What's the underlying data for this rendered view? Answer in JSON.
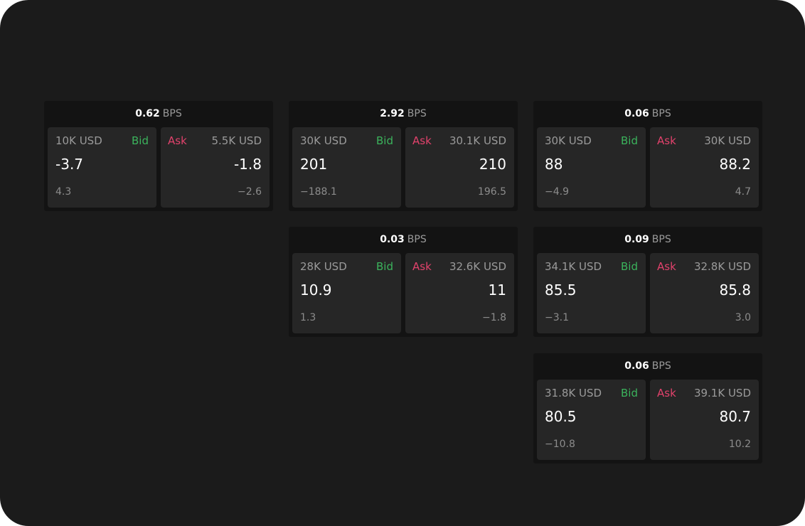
{
  "cards": [
    {
      "spread": "0.62",
      "unit": "BPS",
      "bid": {
        "size": "10K USD",
        "label": "Bid",
        "price": "-3.7",
        "change": "4.3"
      },
      "ask": {
        "size": "5.5K USD",
        "label": "Ask",
        "price": "-1.8",
        "change": "−2.6"
      }
    },
    {
      "spread": "2.92",
      "unit": "BPS",
      "bid": {
        "size": "30K USD",
        "label": "Bid",
        "price": "201",
        "change": "−188.1"
      },
      "ask": {
        "size": "30.1K USD",
        "label": "Ask",
        "price": "210",
        "change": "196.5"
      }
    },
    {
      "spread": "0.06",
      "unit": "BPS",
      "bid": {
        "size": "30K USD",
        "label": "Bid",
        "price": "88",
        "change": "−4.9"
      },
      "ask": {
        "size": "30K USD",
        "label": "Ask",
        "price": "88.2",
        "change": "4.7"
      }
    },
    {
      "spread": "0.03",
      "unit": "BPS",
      "bid": {
        "size": "28K USD",
        "label": "Bid",
        "price": "10.9",
        "change": "1.3"
      },
      "ask": {
        "size": "32.6K USD",
        "label": "Ask",
        "price": "11",
        "change": "−1.8"
      }
    },
    {
      "spread": "0.09",
      "unit": "BPS",
      "bid": {
        "size": "34.1K USD",
        "label": "Bid",
        "price": "85.5",
        "change": "−3.1"
      },
      "ask": {
        "size": "32.8K USD",
        "label": "Ask",
        "price": "85.8",
        "change": "3.0"
      }
    },
    {
      "spread": "0.06",
      "unit": "BPS",
      "bid": {
        "size": "31.8K USD",
        "label": "Bid",
        "price": "80.5",
        "change": "−10.8"
      },
      "ask": {
        "size": "39.1K USD",
        "label": "Ask",
        "price": "80.7",
        "change": "10.2"
      }
    }
  ]
}
